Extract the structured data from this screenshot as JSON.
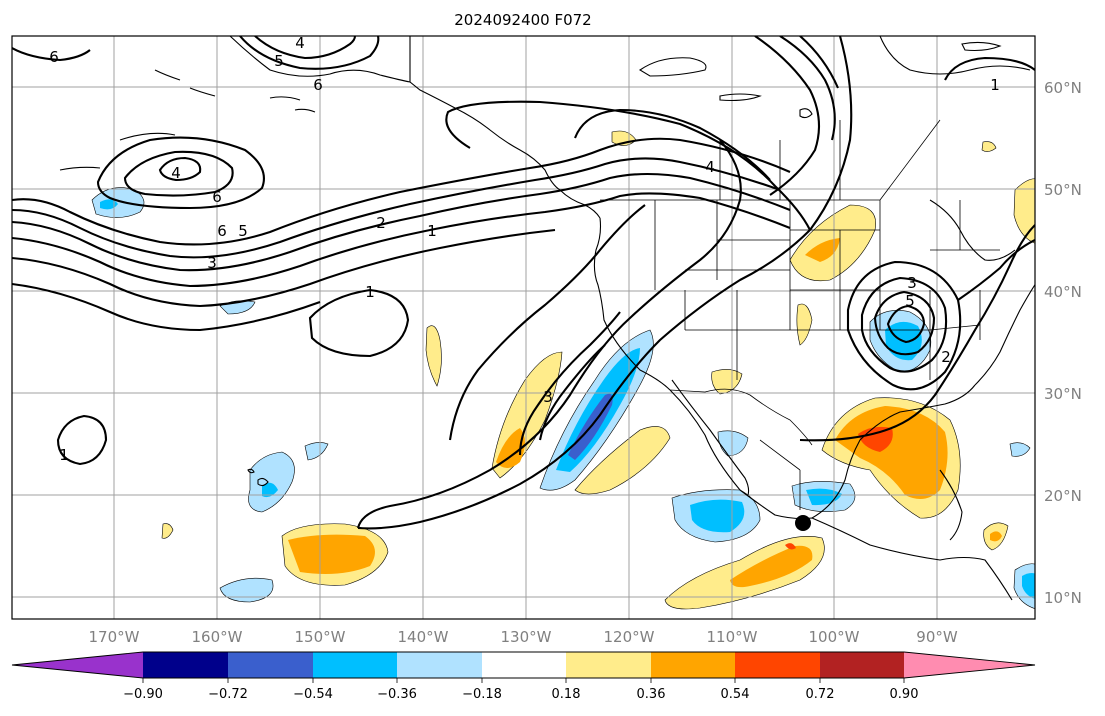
{
  "figure": {
    "title": "2024092400 F072",
    "lon_ticks": [
      "170°W",
      "160°W",
      "150°W",
      "140°W",
      "130°W",
      "120°W",
      "110°W",
      "100°W",
      "90°W"
    ],
    "lat_ticks": [
      "60°N",
      "50°N",
      "40°N",
      "30°N",
      "20°N",
      "10°N"
    ]
  },
  "colorbar": {
    "tick_labels": [
      "−0.90",
      "−0.72",
      "−0.54",
      "−0.36",
      "−0.18",
      "0.18",
      "0.36",
      "0.54",
      "0.72",
      "0.90"
    ],
    "colors": [
      "#9932cc",
      "#00008b",
      "#3a5fcd",
      "#00bfff",
      "#b0e2ff",
      "#ffffff",
      "#ffec8b",
      "#ffa500",
      "#ff4500",
      "#b22222",
      "#ff8cb0"
    ]
  },
  "contour_labels": {
    "l1": "6",
    "l2": "5",
    "l3": "4",
    "l4": "6",
    "l5": "4",
    "l6": "6",
    "l7": "6",
    "l8": "5",
    "l9": "3",
    "l10": "2",
    "l11": "1",
    "l12": "1",
    "l13": "4",
    "l14": "1",
    "l15": "3",
    "l16": "5",
    "l17": "2",
    "l18": "3",
    "l19": "1"
  },
  "marker": {
    "name": "location-dot"
  }
}
